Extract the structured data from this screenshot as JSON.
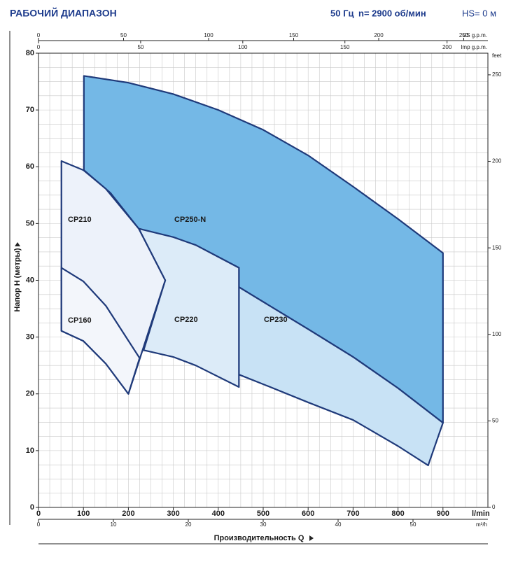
{
  "chart_data": {
    "type": "range",
    "title": "РАБОЧИЙ ДИАПАЗОН",
    "subtitle": [
      "50 Гц",
      "n= 2900 об/мин",
      "HS= 0 м"
    ],
    "x_label": "Производительность Q",
    "y_label": "Напор H (метры)",
    "x_unit": "l/min",
    "xlim": [
      0,
      1000
    ],
    "xticks": [
      0,
      100,
      200,
      300,
      400,
      500,
      600,
      700,
      800,
      900
    ],
    "ylim": [
      0,
      80
    ],
    "yticks": [
      0,
      10,
      20,
      30,
      40,
      50,
      60,
      70,
      80
    ],
    "grid": true,
    "grid_minor": {
      "x": 25,
      "y": 2.5
    },
    "top_axis_us": {
      "label": "US g.p.m.",
      "lim": [
        0,
        264.2
      ],
      "ticks": [
        0,
        50,
        100,
        150,
        200,
        250
      ]
    },
    "top_axis_imp": {
      "label": "Imp g.p.m.",
      "lim": [
        0,
        220
      ],
      "ticks": [
        0,
        50,
        100,
        150,
        200
      ]
    },
    "bottom_axis_m3h": {
      "label": "m³/h",
      "lim": [
        0,
        60
      ],
      "ticks": [
        0,
        10,
        20,
        30,
        40,
        50
      ]
    },
    "right_axis_feet": {
      "label": "feet",
      "lim": [
        0,
        262.5
      ],
      "ticks": [
        0,
        50,
        100,
        150,
        200,
        250
      ]
    },
    "stroke": "#1f3a7a",
    "series": [
      {
        "name": "CP250-N",
        "color": "#74b8e6",
        "x": [
          101,
          200,
          300,
          400,
          500,
          600,
          700,
          800,
          900,
          900,
          800,
          700,
          600,
          500,
          446,
          446,
          350,
          223,
          160,
          101
        ],
        "values": [
          76,
          74.8,
          72.8,
          70,
          66.5,
          62,
          56.5,
          50.8,
          44.8,
          14.9,
          21,
          26.5,
          31.4,
          36.2,
          38.8,
          42.2,
          46.2,
          49.1,
          55.4,
          59.4
        ]
      },
      {
        "name": "CP230",
        "color": "#c8e2f5",
        "x": [
          446,
          500,
          600,
          700,
          800,
          900,
          867,
          800,
          700,
          600,
          500,
          446
        ],
        "values": [
          38.8,
          36.2,
          31.4,
          26.5,
          21,
          14.9,
          7.4,
          10.8,
          15.4,
          18.5,
          21.7,
          23.4
        ]
      },
      {
        "name": "CP220",
        "color": "#dcebf8",
        "x": [
          223,
          300,
          350,
          446,
          446,
          350,
          300,
          234,
          282
        ],
        "values": [
          49.1,
          47.6,
          46.2,
          42.2,
          21.2,
          25,
          26.5,
          27.7,
          40
        ]
      },
      {
        "name": "CP210",
        "color": "#edf2fa",
        "x": [
          51,
          100,
          150,
          223,
          282,
          200,
          150,
          100,
          51
        ],
        "values": [
          61,
          59.4,
          56.1,
          49.1,
          40,
          20,
          25.3,
          29.3,
          31.1
        ]
      },
      {
        "name": "CP160",
        "color": "#f3f6fb",
        "x": [
          51,
          100,
          150,
          225,
          200,
          150,
          100,
          51
        ],
        "values": [
          42.2,
          39.8,
          35.5,
          26.3,
          20,
          25.3,
          29.3,
          31.1
        ]
      }
    ]
  }
}
